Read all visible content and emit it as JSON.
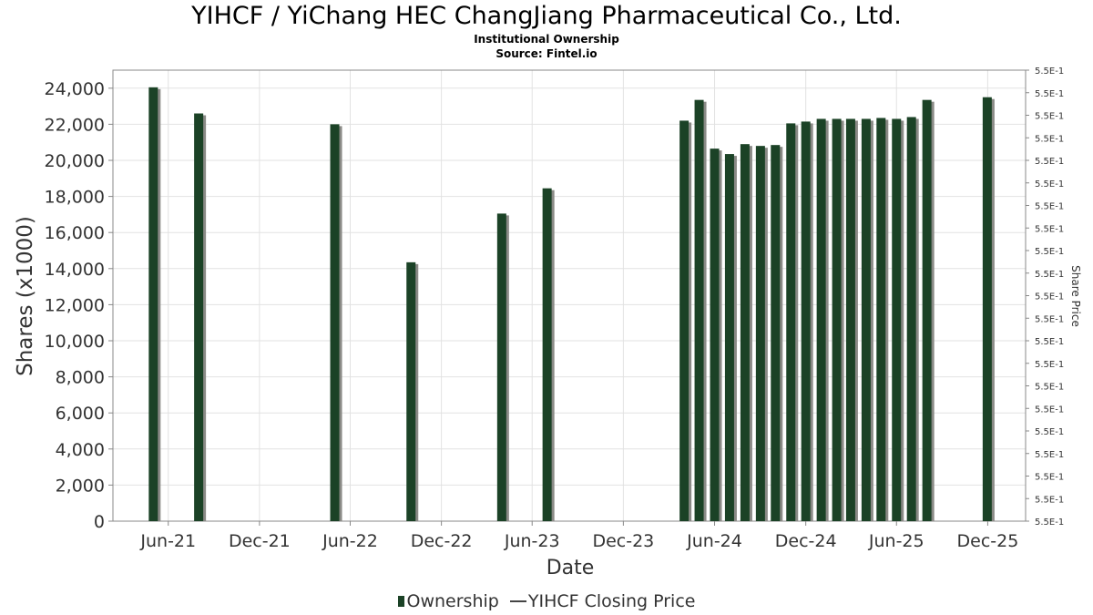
{
  "colors": {
    "bar": "#1b4226",
    "bar_shadow": "#8a8a86",
    "grid": "#e2e2e2",
    "axis": "#888888",
    "price_line": "#444444"
  },
  "chart_data": {
    "type": "bar",
    "title": "YIHCF / YiChang HEC ChangJiang Pharmaceutical Co., Ltd.",
    "subtitle": "Institutional Ownership",
    "source": "Source: Fintel.io",
    "xlabel": "Date",
    "ylabel": "Shares (x1000)",
    "y2label": "Share Price",
    "ylim": [
      0,
      25000
    ],
    "yticks": [
      0,
      2000,
      4000,
      6000,
      8000,
      10000,
      12000,
      14000,
      16000,
      18000,
      20000,
      22000,
      24000
    ],
    "ytick_labels": [
      "0",
      "2,000",
      "4,000",
      "6,000",
      "8,000",
      "10,000",
      "12,000",
      "14,000",
      "16,000",
      "18,000",
      "20,000",
      "22,000",
      "24,000"
    ],
    "y2_tick_labels": [
      "5.5E-1",
      "5.5E-1",
      "5.5E-1",
      "5.5E-1",
      "5.5E-1",
      "5.5E-1",
      "5.5E-1",
      "5.5E-1",
      "5.5E-1",
      "5.5E-1",
      "5.5E-1",
      "5.5E-1",
      "5.5E-1",
      "5.5E-1",
      "5.5E-1",
      "5.5E-1",
      "5.5E-1",
      "5.5E-1",
      "5.5E-1",
      "5.5E-1",
      "5.5E-1"
    ],
    "xlim": [
      "2021-02-10",
      "2026-02-15"
    ],
    "xticks": [
      {
        "date": "2021-06-01",
        "label": "Jun-21"
      },
      {
        "date": "2021-12-01",
        "label": "Dec-21"
      },
      {
        "date": "2022-06-01",
        "label": "Jun-22"
      },
      {
        "date": "2022-12-01",
        "label": "Dec-22"
      },
      {
        "date": "2023-06-01",
        "label": "Jun-23"
      },
      {
        "date": "2023-12-01",
        "label": "Dec-23"
      },
      {
        "date": "2024-06-01",
        "label": "Jun-24"
      },
      {
        "date": "2024-12-01",
        "label": "Dec-24"
      },
      {
        "date": "2025-06-01",
        "label": "Jun-25"
      },
      {
        "date": "2025-12-01",
        "label": "Dec-25"
      }
    ],
    "grid": true,
    "legend_position": "bottom-center",
    "series": [
      {
        "name": "Ownership",
        "type": "bar",
        "points": [
          {
            "date": "2021-05-02",
            "value": 24050
          },
          {
            "date": "2021-08-01",
            "value": 22600
          },
          {
            "date": "2022-05-01",
            "value": 22000
          },
          {
            "date": "2022-10-01",
            "value": 14350
          },
          {
            "date": "2023-04-01",
            "value": 17050
          },
          {
            "date": "2023-07-01",
            "value": 18450
          },
          {
            "date": "2024-04-01",
            "value": 22200
          },
          {
            "date": "2024-05-01",
            "value": 23350
          },
          {
            "date": "2024-06-01",
            "value": 20650
          },
          {
            "date": "2024-07-01",
            "value": 20350
          },
          {
            "date": "2024-08-01",
            "value": 20900
          },
          {
            "date": "2024-09-01",
            "value": 20800
          },
          {
            "date": "2024-10-01",
            "value": 20850
          },
          {
            "date": "2024-11-01",
            "value": 22050
          },
          {
            "date": "2024-12-01",
            "value": 22150
          },
          {
            "date": "2025-01-01",
            "value": 22300
          },
          {
            "date": "2025-02-01",
            "value": 22300
          },
          {
            "date": "2025-03-01",
            "value": 22300
          },
          {
            "date": "2025-04-01",
            "value": 22300
          },
          {
            "date": "2025-05-01",
            "value": 22350
          },
          {
            "date": "2025-06-01",
            "value": 22300
          },
          {
            "date": "2025-07-01",
            "value": 22400
          },
          {
            "date": "2025-08-01",
            "value": 23350
          },
          {
            "date": "2025-11-30",
            "value": 23500
          }
        ]
      },
      {
        "name": "YIHCF Closing Price",
        "type": "line",
        "points": []
      }
    ]
  }
}
